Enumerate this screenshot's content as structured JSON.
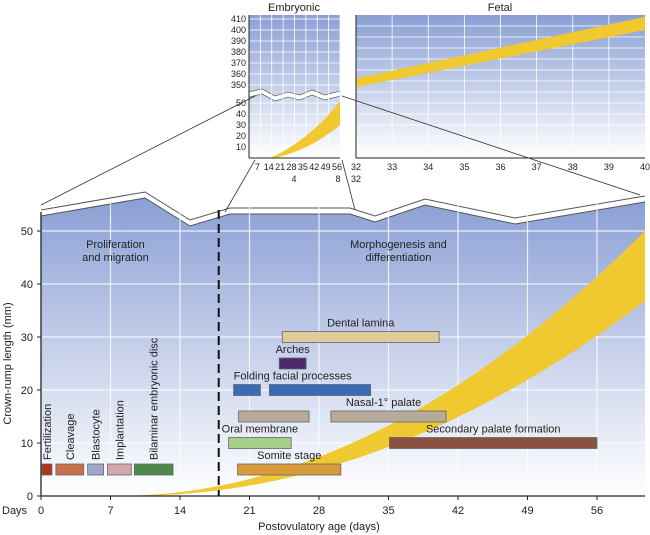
{
  "chart_data": [
    {
      "type": "bar",
      "subtype": "timeline",
      "xlabel": "Postovulatory age (days)",
      "xprefix": "Days",
      "ylabel": "Crown-rump length (mm)",
      "xlim": [
        0,
        61
      ],
      "ylim": [
        0,
        55
      ],
      "xticks": [
        0,
        7,
        14,
        21,
        28,
        35,
        42,
        49,
        56
      ],
      "yticks": [
        0,
        10,
        20,
        30,
        40,
        50
      ],
      "grid": true,
      "divider_day": 17.9,
      "phases": [
        "Proliferation\nand migration",
        "Morphogenesis and\ndifferentiation"
      ],
      "bars": [
        {
          "label": "Fertilization",
          "start": 0.1,
          "end": 1.1,
          "y": 5,
          "color": "#b5321e",
          "rotated": true
        },
        {
          "label": "Cleavage",
          "start": 1.5,
          "end": 4.3,
          "y": 5,
          "color": "#c8704a",
          "rotated": true
        },
        {
          "label": "Blastocyte",
          "start": 4.7,
          "end": 6.3,
          "y": 5,
          "color": "#a0a6cc",
          "rotated": true
        },
        {
          "label": "Implantation",
          "start": 6.7,
          "end": 9.1,
          "y": 5,
          "color": "#d4a6b0",
          "rotated": true
        },
        {
          "label": "Bilaminar embryonic disc",
          "start": 9.4,
          "end": 13.3,
          "y": 5,
          "color": "#4e8a4a",
          "rotated": true
        },
        {
          "label": "Somite stage",
          "start": 19.8,
          "end": 30.2,
          "y": 5,
          "color": "#d99a3a"
        },
        {
          "label": "Oral membrane",
          "start": 18.9,
          "end": 25.2,
          "y": 10,
          "color": "#a6d08a"
        },
        {
          "label": "Secondary palate formation",
          "start": 35.1,
          "end": 56,
          "y": 10,
          "color": "#8a5040"
        },
        {
          "label": "Nasal-1° palate",
          "start": 19.9,
          "end": 27.0,
          "y": 15,
          "color": "#b8aa98",
          "second": [
            29.2,
            40.8
          ]
        },
        {
          "label": "Folding facial processes",
          "start": 19.4,
          "end": 22.1,
          "y": 20,
          "color": "#3a6ab8",
          "second": [
            23.0,
            33.2
          ]
        },
        {
          "label": "Arches",
          "start": 24.0,
          "end": 26.7,
          "y": 25,
          "color": "#4a2a6a"
        },
        {
          "label": "Dental lamina",
          "start": 24.3,
          "end": 40.1,
          "y": 30,
          "color": "#e0cc9a"
        }
      ],
      "growth_band": {
        "upper": {
          "onset_day": 7.5,
          "coef": 0.0176
        },
        "lower": {
          "onset_day": 9,
          "coef": 0.0137
        },
        "color": "#f0c830"
      }
    },
    {
      "type": "area",
      "title": "Embryonic",
      "xticks": [
        "7",
        "14",
        "21",
        "28",
        "35",
        "42",
        "49",
        "56"
      ],
      "xticks_secondary": [
        "4",
        "8"
      ],
      "yticks_upper": [
        350,
        360,
        370,
        380,
        390,
        400,
        410
      ],
      "yticks_lower": [
        10,
        20,
        30,
        40,
        50
      ],
      "corner_label": "32"
    },
    {
      "type": "area",
      "title": "Fetal",
      "xticks": [
        32,
        33,
        34,
        35,
        36,
        37,
        38,
        39,
        40
      ],
      "band_start": [
        348,
        356
      ],
      "band_end": [
        400,
        412
      ]
    }
  ]
}
